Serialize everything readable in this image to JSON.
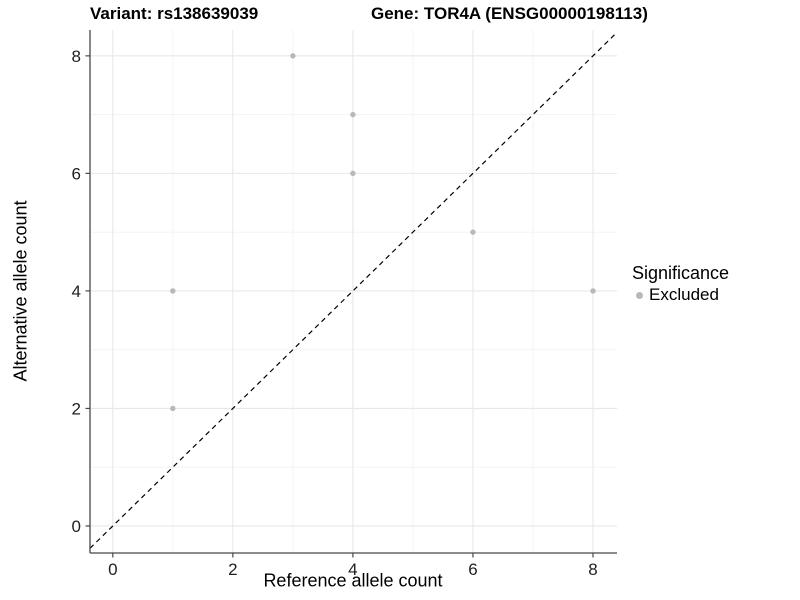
{
  "chart_data": {
    "type": "scatter",
    "title_left": "Variant: rs138639039",
    "title_right": "Gene: TOR4A (ENSG00000198113)",
    "xlabel": "Reference allele count",
    "ylabel": "Alternative allele count",
    "xlim": [
      -0.38,
      8.4
    ],
    "ylim": [
      -0.46,
      8.44
    ],
    "x_ticks": [
      0,
      2,
      4,
      6,
      8
    ],
    "y_ticks": [
      0,
      2,
      4,
      6,
      8
    ],
    "x_minor_gridlines": [
      1,
      3,
      5,
      7
    ],
    "y_minor_gridlines": [
      1,
      3,
      5,
      7
    ],
    "grid": "major+minor",
    "series": [
      {
        "name": "Excluded",
        "color": "#b8b8b8",
        "point_radius": 2.7,
        "points": [
          [
            1,
            2
          ],
          [
            1,
            4
          ],
          [
            3,
            8
          ],
          [
            4,
            6
          ],
          [
            4,
            7
          ],
          [
            6,
            5
          ],
          [
            8,
            4
          ]
        ]
      }
    ],
    "reference_line": {
      "kind": "identity y=x",
      "style": "dashed",
      "color": "#000000"
    },
    "legend": {
      "position": "right",
      "title": "Significance",
      "items": [
        {
          "label": "Excluded",
          "color": "#b8b8b8"
        }
      ]
    }
  },
  "colors": {
    "background": "#ffffff",
    "grid_major": "#e8e8e8",
    "grid_minor": "#f2f2f2",
    "axis_line": "#474747",
    "tick_label": "#1f1f1f",
    "text": "#000000"
  }
}
